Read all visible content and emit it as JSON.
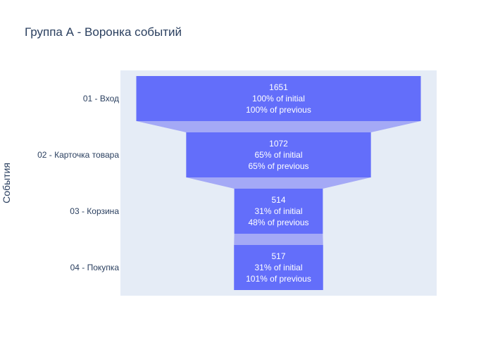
{
  "chart_data": {
    "type": "funnel",
    "title": "Группа А - Воронка событий",
    "ylabel": "События",
    "categories": [
      "01 - Вход",
      "02 - Карточка товара",
      "03 - Корзина",
      "04 - Покупка"
    ],
    "values": [
      1651,
      1072,
      514,
      517
    ],
    "percent_initial_labels": [
      "100% of initial",
      "65% of initial",
      "31% of initial",
      "31% of initial"
    ],
    "percent_previous_labels": [
      "100% of previous",
      "65% of previous",
      "48% of previous",
      "101% of previous"
    ],
    "colors": {
      "bar": "#636efa",
      "connector": "#a4a9f6",
      "plot_bg": "#e5ecf6"
    }
  }
}
